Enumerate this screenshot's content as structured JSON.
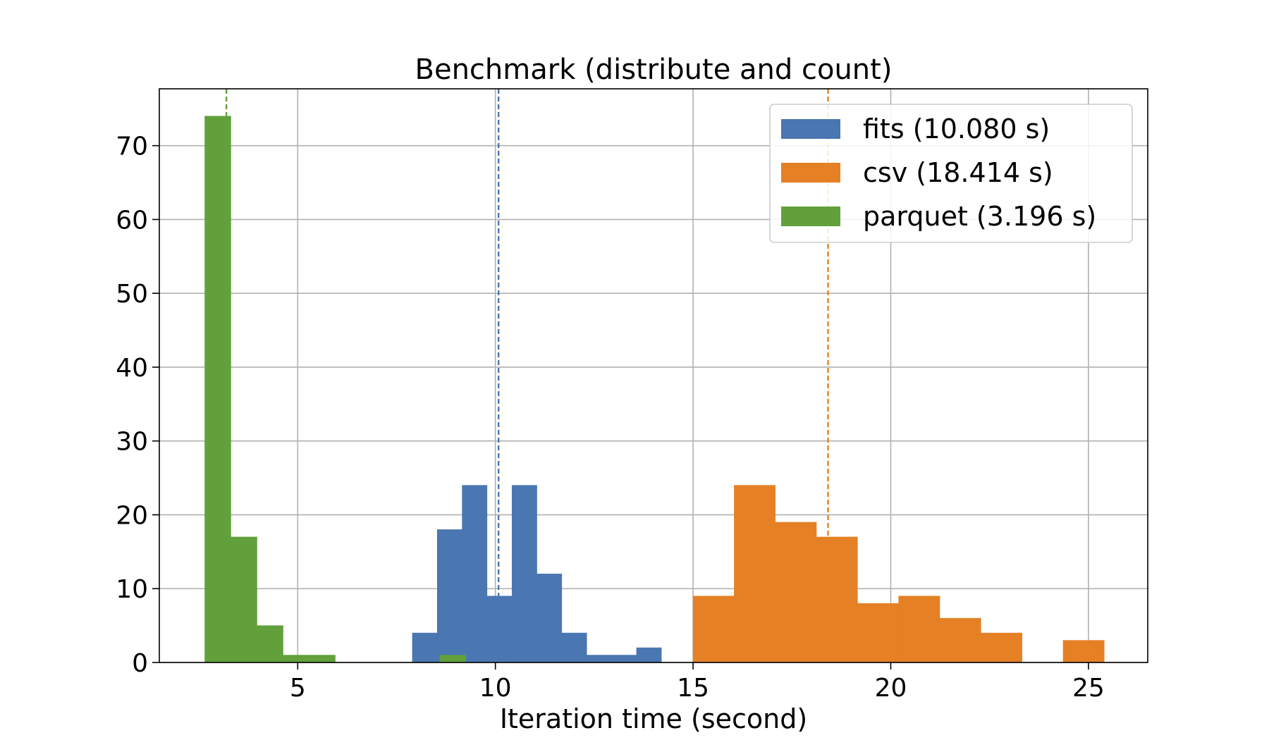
{
  "chart_data": {
    "type": "bar",
    "subtype": "histogram",
    "title": "Benchmark (distribute and count)",
    "xlabel": "Iteration time (second)",
    "ylabel": "",
    "xlim": [
      1.5,
      26.5
    ],
    "ylim": [
      0,
      77.7
    ],
    "xticks": [
      5,
      10,
      15,
      20,
      25
    ],
    "yticks": [
      0,
      10,
      20,
      30,
      40,
      50,
      60,
      70
    ],
    "grid": true,
    "legend_position": "top-right",
    "series": [
      {
        "name": "fits (10.080 s)",
        "color": "#4a76b1",
        "mean": 10.08,
        "bins": [
          {
            "x0": 7.9,
            "x1": 8.53,
            "count": 4
          },
          {
            "x0": 8.53,
            "x1": 9.16,
            "count": 18
          },
          {
            "x0": 9.16,
            "x1": 9.79,
            "count": 24
          },
          {
            "x0": 9.79,
            "x1": 10.42,
            "count": 9
          },
          {
            "x0": 10.42,
            "x1": 11.05,
            "count": 24
          },
          {
            "x0": 11.05,
            "x1": 11.68,
            "count": 12
          },
          {
            "x0": 11.68,
            "x1": 12.31,
            "count": 4
          },
          {
            "x0": 12.31,
            "x1": 12.94,
            "count": 1
          },
          {
            "x0": 12.94,
            "x1": 13.57,
            "count": 1
          },
          {
            "x0": 13.57,
            "x1": 14.2,
            "count": 2
          }
        ]
      },
      {
        "name": "csv (18.414 s)",
        "color": "#e58025",
        "mean": 18.414,
        "bins": [
          {
            "x0": 15.0,
            "x1": 16.04,
            "count": 9
          },
          {
            "x0": 16.04,
            "x1": 17.08,
            "count": 24
          },
          {
            "x0": 17.08,
            "x1": 18.12,
            "count": 19
          },
          {
            "x0": 18.12,
            "x1": 19.16,
            "count": 17
          },
          {
            "x0": 19.16,
            "x1": 20.2,
            "count": 8
          },
          {
            "x0": 20.2,
            "x1": 21.24,
            "count": 9
          },
          {
            "x0": 21.24,
            "x1": 22.28,
            "count": 6
          },
          {
            "x0": 22.28,
            "x1": 23.32,
            "count": 4
          },
          {
            "x0": 23.32,
            "x1": 24.36,
            "count": 0
          },
          {
            "x0": 24.36,
            "x1": 25.4,
            "count": 3
          }
        ]
      },
      {
        "name": "parquet (3.196 s)",
        "color": "#62a03b",
        "mean": 3.196,
        "bins": [
          {
            "x0": 2.65,
            "x1": 3.31,
            "count": 74
          },
          {
            "x0": 3.31,
            "x1": 3.97,
            "count": 17
          },
          {
            "x0": 3.97,
            "x1": 4.63,
            "count": 5
          },
          {
            "x0": 4.63,
            "x1": 5.29,
            "count": 1
          },
          {
            "x0": 5.29,
            "x1": 5.95,
            "count": 1
          },
          {
            "x0": 5.95,
            "x1": 6.61,
            "count": 0
          },
          {
            "x0": 6.61,
            "x1": 7.27,
            "count": 0
          },
          {
            "x0": 7.27,
            "x1": 7.93,
            "count": 0
          },
          {
            "x0": 7.93,
            "x1": 8.59,
            "count": 0
          },
          {
            "x0": 8.59,
            "x1": 9.25,
            "count": 1
          }
        ]
      }
    ]
  }
}
